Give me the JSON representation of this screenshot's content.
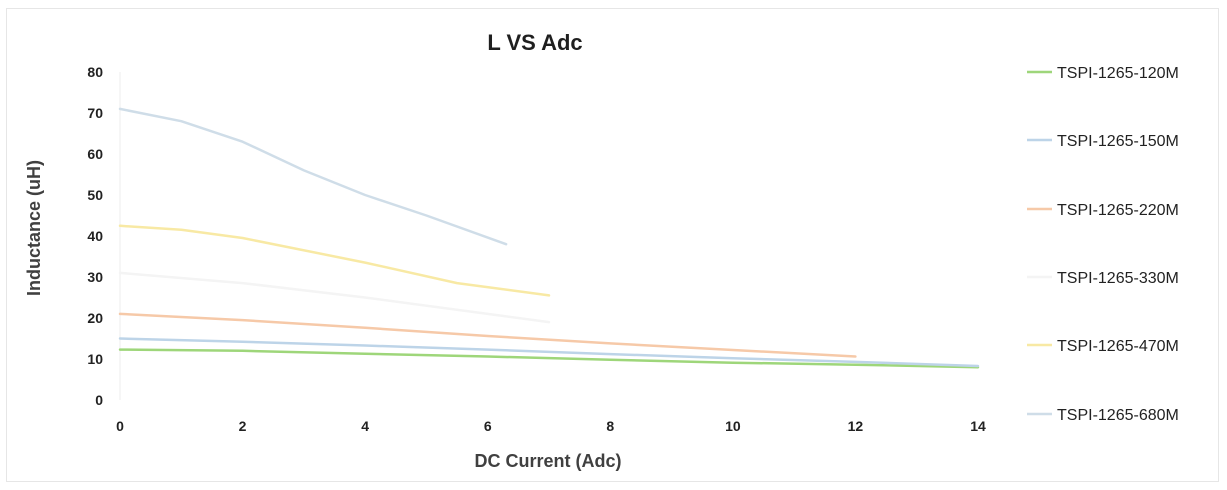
{
  "chart_data": {
    "type": "line",
    "title": "L VS Adc",
    "xlabel": "DC Current (Adc)",
    "ylabel": "Inductance (uH)",
    "xlim": [
      0,
      14
    ],
    "ylim": [
      0,
      80
    ],
    "x_ticks": [
      "0",
      "2",
      "4",
      "6",
      "8",
      "10",
      "12",
      "14"
    ],
    "y_ticks": [
      "0",
      "10",
      "20",
      "30",
      "40",
      "50",
      "60",
      "70",
      "80"
    ],
    "grid": false,
    "legend_position": "right",
    "series": [
      {
        "name": "TSPI-1265-120M",
        "color": "#9ed67a",
        "points": [
          [
            0,
            12.3
          ],
          [
            2,
            12
          ],
          [
            4,
            11.3
          ],
          [
            6,
            10.6
          ],
          [
            8,
            9.8
          ],
          [
            10,
            9.1
          ],
          [
            12,
            8.6
          ],
          [
            14,
            8.0
          ]
        ]
      },
      {
        "name": "TSPI-1265-150M",
        "color": "#bdd4e8",
        "points": [
          [
            0,
            15
          ],
          [
            2,
            14.2
          ],
          [
            4,
            13.3
          ],
          [
            6,
            12.3
          ],
          [
            8,
            11.2
          ],
          [
            10,
            10.2
          ],
          [
            12,
            9.3
          ],
          [
            14,
            8.3
          ]
        ]
      },
      {
        "name": "TSPI-1265-220M",
        "color": "#f6c9a8",
        "points": [
          [
            0,
            21
          ],
          [
            2,
            19.5
          ],
          [
            4,
            17.6
          ],
          [
            6,
            15.6
          ],
          [
            8,
            13.8
          ],
          [
            10,
            12.2
          ],
          [
            12,
            10.6
          ]
        ]
      },
      {
        "name": "TSPI-1265-330M",
        "color": "#f4f4f4",
        "points": [
          [
            0,
            31
          ],
          [
            2,
            28.5
          ],
          [
            4,
            25
          ],
          [
            6,
            21
          ],
          [
            7,
            19
          ]
        ]
      },
      {
        "name": "TSPI-1265-470M",
        "color": "#f8e9a4",
        "points": [
          [
            0,
            42.5
          ],
          [
            1,
            41.5
          ],
          [
            2,
            39.5
          ],
          [
            4,
            33.5
          ],
          [
            5.5,
            28.5
          ],
          [
            7,
            25.5
          ]
        ]
      },
      {
        "name": "TSPI-1265-680M",
        "color": "#cfdde8",
        "points": [
          [
            0,
            71
          ],
          [
            1,
            68
          ],
          [
            2,
            63
          ],
          [
            3,
            56
          ],
          [
            4,
            50
          ],
          [
            5,
            45
          ],
          [
            6.3,
            38
          ]
        ]
      }
    ]
  }
}
